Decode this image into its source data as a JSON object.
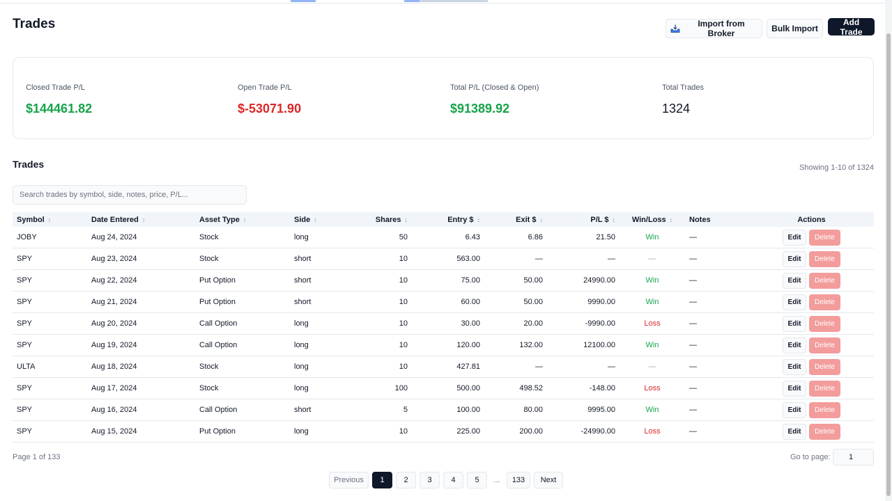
{
  "header": {
    "title": "Trades",
    "buttons": {
      "import_broker": "Import from Broker",
      "bulk_import": "Bulk Import",
      "add_trade": "Add Trade"
    }
  },
  "summary": {
    "closed": {
      "label": "Closed Trade P/L",
      "value": "$144461.82"
    },
    "open": {
      "label": "Open Trade P/L",
      "value": "$-53071.90"
    },
    "total": {
      "label": "Total P/L (Closed & Open)",
      "value": "$91389.92"
    },
    "count": {
      "label": "Total Trades",
      "value": "1324"
    }
  },
  "trades_section": {
    "title": "Trades",
    "showing": "Showing 1-10 of 1324",
    "search_placeholder": "Search trades by symbol, side, notes, price, P/L..."
  },
  "table": {
    "columns": [
      "Symbol",
      "Date Entered",
      "Asset Type",
      "Side",
      "Shares",
      "Entry $",
      "Exit $",
      "P/L $",
      "Win/Loss",
      "Notes",
      "Actions"
    ],
    "sort_icon": "↕",
    "edit_label": "Edit",
    "delete_label": "Delete",
    "rows": [
      {
        "symbol": "JOBY",
        "date": "Aug 24, 2024",
        "asset": "Stock",
        "side": "long",
        "shares": "50",
        "entry": "6.43",
        "exit": "6.86",
        "pl": "21.50",
        "wl": "Win",
        "notes": "—"
      },
      {
        "symbol": "SPY",
        "date": "Aug 23, 2024",
        "asset": "Stock",
        "side": "short",
        "shares": "10",
        "entry": "563.00",
        "exit": "—",
        "pl": "—",
        "wl": "—",
        "notes": "—"
      },
      {
        "symbol": "SPY",
        "date": "Aug 22, 2024",
        "asset": "Put Option",
        "side": "short",
        "shares": "10",
        "entry": "75.00",
        "exit": "50.00",
        "pl": "24990.00",
        "wl": "Win",
        "notes": "—"
      },
      {
        "symbol": "SPY",
        "date": "Aug 21, 2024",
        "asset": "Put Option",
        "side": "short",
        "shares": "10",
        "entry": "60.00",
        "exit": "50.00",
        "pl": "9990.00",
        "wl": "Win",
        "notes": "—"
      },
      {
        "symbol": "SPY",
        "date": "Aug 20, 2024",
        "asset": "Call Option",
        "side": "long",
        "shares": "10",
        "entry": "30.00",
        "exit": "20.00",
        "pl": "-9990.00",
        "wl": "Loss",
        "notes": "—"
      },
      {
        "symbol": "SPY",
        "date": "Aug 19, 2024",
        "asset": "Call Option",
        "side": "long",
        "shares": "10",
        "entry": "120.00",
        "exit": "132.00",
        "pl": "12100.00",
        "wl": "Win",
        "notes": "—"
      },
      {
        "symbol": "ULTA",
        "date": "Aug 18, 2024",
        "asset": "Stock",
        "side": "long",
        "shares": "10",
        "entry": "427.81",
        "exit": "—",
        "pl": "—",
        "wl": "—",
        "notes": "—"
      },
      {
        "symbol": "SPY",
        "date": "Aug 17, 2024",
        "asset": "Stock",
        "side": "long",
        "shares": "100",
        "entry": "500.00",
        "exit": "498.52",
        "pl": "-148.00",
        "wl": "Loss",
        "notes": "—"
      },
      {
        "symbol": "SPY",
        "date": "Aug 16, 2024",
        "asset": "Call Option",
        "side": "short",
        "shares": "5",
        "entry": "100.00",
        "exit": "80.00",
        "pl": "9995.00",
        "wl": "Win",
        "notes": "—"
      },
      {
        "symbol": "SPY",
        "date": "Aug 15, 2024",
        "asset": "Put Option",
        "side": "long",
        "shares": "10",
        "entry": "225.00",
        "exit": "200.00",
        "pl": "-24990.00",
        "wl": "Loss",
        "notes": "—"
      }
    ]
  },
  "footer": {
    "page_info": "Page 1 of 133",
    "goto_label": "Go to page:",
    "goto_value": "1"
  },
  "pagination": {
    "previous": "Previous",
    "pages": [
      "1",
      "2",
      "3",
      "4",
      "5"
    ],
    "ellipsis": "...",
    "last": "133",
    "next": "Next"
  },
  "colors": {
    "positive": "#16a34a",
    "negative": "#dc2626",
    "primary_button": "#0f172a",
    "delete_button": "#f39c9c"
  },
  "icons": {
    "import_broker": "inbox-tray-icon",
    "sort": "sort-arrows-icon"
  }
}
